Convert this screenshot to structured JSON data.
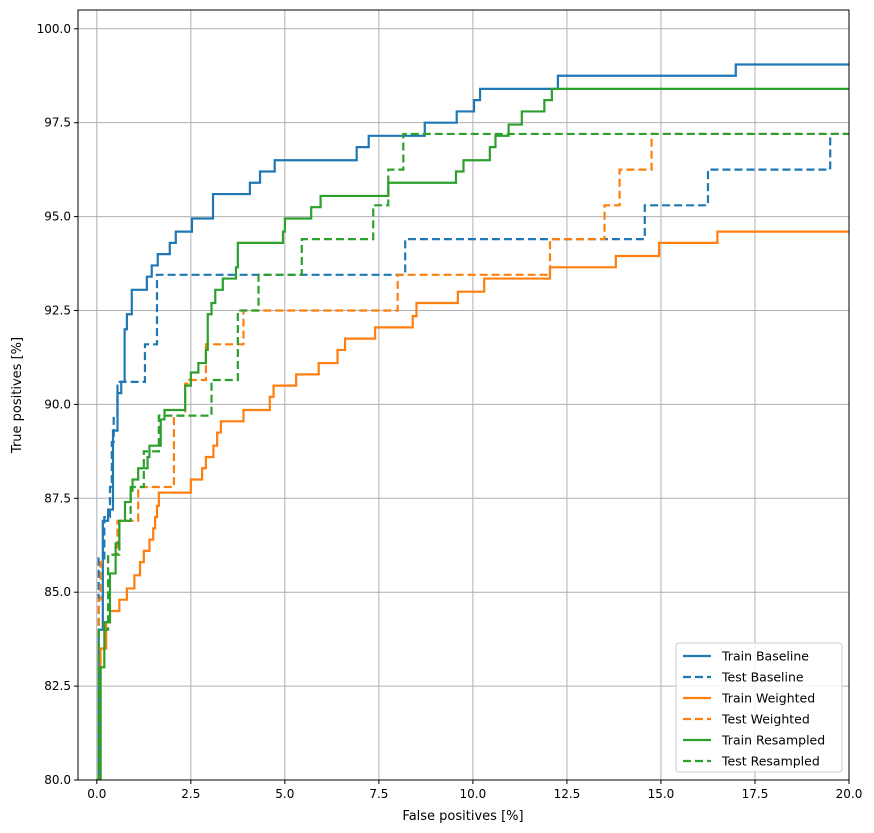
{
  "chart_data": {
    "type": "line",
    "title": "",
    "xlabel": "False positives [%]",
    "ylabel": "True positives [%]",
    "xlim": [
      -0.5,
      20
    ],
    "ylim": [
      80,
      100.5
    ],
    "xticks": [
      "0.0",
      "2.5",
      "5.0",
      "7.5",
      "10.0",
      "12.5",
      "15.0",
      "17.5",
      "20.0"
    ],
    "yticks": [
      "80.0",
      "82.5",
      "85.0",
      "87.5",
      "90.0",
      "92.5",
      "95.0",
      "97.5",
      "100.0"
    ],
    "grid": true,
    "legend_position": "bottom-right",
    "step": "horizontal-then-vertical",
    "series": [
      {
        "name": "Train Baseline",
        "color": "#1f77b4",
        "dash": "solid",
        "points": [
          [
            0,
            80
          ],
          [
            0.05,
            84
          ],
          [
            0.16,
            86.9
          ],
          [
            0.3,
            87.2
          ],
          [
            0.43,
            89.3
          ],
          [
            0.55,
            90.3
          ],
          [
            0.65,
            90.6
          ],
          [
            0.74,
            92.0
          ],
          [
            0.8,
            92.4
          ],
          [
            0.93,
            93.05
          ],
          [
            1.33,
            93.4
          ],
          [
            1.46,
            93.7
          ],
          [
            1.62,
            94.0
          ],
          [
            1.94,
            94.3
          ],
          [
            2.1,
            94.6
          ],
          [
            2.53,
            94.95
          ],
          [
            3.09,
            95.6
          ],
          [
            4.07,
            95.9
          ],
          [
            4.34,
            96.2
          ],
          [
            4.73,
            96.5
          ],
          [
            6.91,
            96.85
          ],
          [
            7.23,
            97.15
          ],
          [
            8.72,
            97.5
          ],
          [
            9.57,
            97.8
          ],
          [
            10.03,
            98.1
          ],
          [
            10.19,
            98.4
          ],
          [
            12.26,
            98.75
          ],
          [
            16.99,
            99.05
          ],
          [
            20,
            99.05
          ]
        ]
      },
      {
        "name": "Test Baseline",
        "color": "#1f77b4",
        "dash": "dashed",
        "points": [
          [
            0,
            80
          ],
          [
            0.05,
            85.9
          ],
          [
            0.2,
            87.0
          ],
          [
            0.35,
            87.8
          ],
          [
            0.4,
            89.0
          ],
          [
            0.45,
            89.7
          ],
          [
            0.55,
            90.6
          ],
          [
            1.28,
            91.6
          ],
          [
            1.6,
            93.45
          ],
          [
            8.2,
            94.4
          ],
          [
            14.57,
            95.3
          ],
          [
            16.25,
            96.25
          ],
          [
            19.5,
            97.2
          ],
          [
            20,
            97.2
          ]
        ]
      },
      {
        "name": "Train Weighted",
        "color": "#ff7f0e",
        "dash": "solid",
        "points": [
          [
            0,
            80
          ],
          [
            0.1,
            83.5
          ],
          [
            0.25,
            84.2
          ],
          [
            0.35,
            84.5
          ],
          [
            0.6,
            84.8
          ],
          [
            0.8,
            85.1
          ],
          [
            1.0,
            85.45
          ],
          [
            1.15,
            85.8
          ],
          [
            1.25,
            86.1
          ],
          [
            1.4,
            86.4
          ],
          [
            1.5,
            86.7
          ],
          [
            1.55,
            87.0
          ],
          [
            1.6,
            87.3
          ],
          [
            1.65,
            87.65
          ],
          [
            2.5,
            88.0
          ],
          [
            2.8,
            88.3
          ],
          [
            2.9,
            88.6
          ],
          [
            3.1,
            88.9
          ],
          [
            3.2,
            89.25
          ],
          [
            3.3,
            89.55
          ],
          [
            3.9,
            89.85
          ],
          [
            4.6,
            90.2
          ],
          [
            4.7,
            90.5
          ],
          [
            5.3,
            90.8
          ],
          [
            5.9,
            91.1
          ],
          [
            6.4,
            91.45
          ],
          [
            6.6,
            91.75
          ],
          [
            7.4,
            92.05
          ],
          [
            8.4,
            92.35
          ],
          [
            8.5,
            92.7
          ],
          [
            9.6,
            93.0
          ],
          [
            10.3,
            93.35
          ],
          [
            12.05,
            93.65
          ],
          [
            13.8,
            93.95
          ],
          [
            14.95,
            94.3
          ],
          [
            16.5,
            94.6
          ],
          [
            20,
            94.6
          ]
        ]
      },
      {
        "name": "Test Weighted",
        "color": "#ff7f0e",
        "dash": "dashed",
        "points": [
          [
            0,
            80
          ],
          [
            0.05,
            84.8
          ],
          [
            0.1,
            85.8
          ],
          [
            0.3,
            86.0
          ],
          [
            0.55,
            86.9
          ],
          [
            1.1,
            87.8
          ],
          [
            2.05,
            89.7
          ],
          [
            2.35,
            90.55
          ],
          [
            2.45,
            90.65
          ],
          [
            2.9,
            91.6
          ],
          [
            3.9,
            92.5
          ],
          [
            8.0,
            93.45
          ],
          [
            12.05,
            94.4
          ],
          [
            13.5,
            95.3
          ],
          [
            13.9,
            96.25
          ],
          [
            14.75,
            97.2
          ],
          [
            20,
            97.2
          ]
        ]
      },
      {
        "name": "Train Resampled",
        "color": "#2ca02c",
        "dash": "solid",
        "points": [
          [
            0,
            80
          ],
          [
            0.1,
            83
          ],
          [
            0.2,
            84.2
          ],
          [
            0.35,
            85.5
          ],
          [
            0.5,
            86.3
          ],
          [
            0.6,
            86.9
          ],
          [
            0.75,
            87.4
          ],
          [
            0.9,
            87.7
          ],
          [
            0.95,
            88.0
          ],
          [
            1.1,
            88.3
          ],
          [
            1.35,
            88.6
          ],
          [
            1.4,
            88.9
          ],
          [
            1.7,
            89.6
          ],
          [
            1.8,
            89.85
          ],
          [
            2.35,
            90.5
          ],
          [
            2.5,
            90.85
          ],
          [
            2.7,
            91.1
          ],
          [
            2.9,
            91.45
          ],
          [
            2.95,
            92.4
          ],
          [
            3.05,
            92.7
          ],
          [
            3.15,
            93.05
          ],
          [
            3.35,
            93.35
          ],
          [
            3.7,
            93.65
          ],
          [
            3.75,
            94.3
          ],
          [
            4.95,
            94.6
          ],
          [
            5.0,
            94.95
          ],
          [
            5.7,
            95.25
          ],
          [
            5.95,
            95.55
          ],
          [
            7.75,
            95.9
          ],
          [
            9.55,
            96.2
          ],
          [
            9.75,
            96.5
          ],
          [
            10.45,
            96.85
          ],
          [
            10.6,
            97.15
          ],
          [
            10.95,
            97.45
          ],
          [
            11.3,
            97.8
          ],
          [
            11.9,
            98.1
          ],
          [
            12.1,
            98.4
          ],
          [
            20,
            98.4
          ]
        ]
      },
      {
        "name": "Test Resampled",
        "color": "#2ca02c",
        "dash": "dashed",
        "points": [
          [
            0,
            80
          ],
          [
            0.05,
            84
          ],
          [
            0.3,
            86.0
          ],
          [
            0.6,
            86.9
          ],
          [
            0.9,
            87.8
          ],
          [
            1.25,
            88.75
          ],
          [
            1.65,
            89.7
          ],
          [
            3.05,
            90.65
          ],
          [
            3.75,
            92.5
          ],
          [
            4.3,
            93.45
          ],
          [
            5.45,
            94.4
          ],
          [
            7.35,
            95.3
          ],
          [
            7.75,
            96.25
          ],
          [
            8.15,
            97.2
          ],
          [
            20,
            97.2
          ]
        ]
      }
    ]
  }
}
